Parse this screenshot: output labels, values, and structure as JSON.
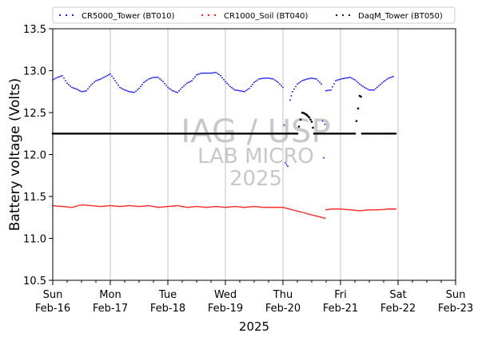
{
  "chart_data": {
    "type": "scatter",
    "title": "",
    "xlabel": "2025",
    "ylabel": "Battery voltage (Volts)",
    "xlim": [
      "2025-02-16",
      "2025-02-23"
    ],
    "ylim": [
      10.5,
      13.5
    ],
    "yticks": [
      "10.5",
      "11.0",
      "11.5",
      "12.0",
      "12.5",
      "13.0",
      "13.5"
    ],
    "xticks": [
      {
        "date": "2025-02-16",
        "weekday": "Sun",
        "day": "Feb-16"
      },
      {
        "date": "2025-02-17",
        "weekday": "Mon",
        "day": "Feb-17"
      },
      {
        "date": "2025-02-18",
        "weekday": "Tue",
        "day": "Feb-18"
      },
      {
        "date": "2025-02-19",
        "weekday": "Wed",
        "day": "Feb-19"
      },
      {
        "date": "2025-02-20",
        "weekday": "Thu",
        "day": "Feb-20"
      },
      {
        "date": "2025-02-21",
        "weekday": "Fri",
        "day": "Feb-21"
      },
      {
        "date": "2025-02-22",
        "weekday": "Sat",
        "day": "Feb-22"
      },
      {
        "date": "2025-02-23",
        "weekday": "Sun",
        "day": "Feb-23"
      }
    ],
    "grid": "vertical",
    "legend": "top-center",
    "watermark": [
      "IAG / USP",
      "LAB MICRO",
      "2025"
    ],
    "series": [
      {
        "name": "CR5000_Tower (BT010)",
        "color": "#0000ff",
        "points": [
          [
            "2025-02-16 00:00",
            12.89
          ],
          [
            "2025-02-16 02:00",
            12.92
          ],
          [
            "2025-02-16 04:00",
            12.94
          ],
          [
            "2025-02-16 06:00",
            12.85
          ],
          [
            "2025-02-16 08:00",
            12.8
          ],
          [
            "2025-02-16 10:00",
            12.78
          ],
          [
            "2025-02-16 12:00",
            12.75
          ],
          [
            "2025-02-16 14:00",
            12.76
          ],
          [
            "2025-02-16 16:00",
            12.83
          ],
          [
            "2025-02-16 18:00",
            12.88
          ],
          [
            "2025-02-16 20:00",
            12.9
          ],
          [
            "2025-02-16 22:00",
            12.93
          ],
          [
            "2025-02-17 00:00",
            12.96
          ],
          [
            "2025-02-17 02:00",
            12.88
          ],
          [
            "2025-02-17 04:00",
            12.8
          ],
          [
            "2025-02-17 06:00",
            12.77
          ],
          [
            "2025-02-17 08:00",
            12.75
          ],
          [
            "2025-02-17 10:00",
            12.74
          ],
          [
            "2025-02-17 12:00",
            12.79
          ],
          [
            "2025-02-17 14:00",
            12.86
          ],
          [
            "2025-02-17 16:00",
            12.9
          ],
          [
            "2025-02-17 18:00",
            12.92
          ],
          [
            "2025-02-17 20:00",
            12.92
          ],
          [
            "2025-02-17 22:00",
            12.87
          ],
          [
            "2025-02-18 00:00",
            12.8
          ],
          [
            "2025-02-18 02:00",
            12.76
          ],
          [
            "2025-02-18 04:00",
            12.74
          ],
          [
            "2025-02-18 06:00",
            12.8
          ],
          [
            "2025-02-18 08:00",
            12.85
          ],
          [
            "2025-02-18 10:00",
            12.88
          ],
          [
            "2025-02-18 12:00",
            12.95
          ],
          [
            "2025-02-18 14:00",
            12.97
          ],
          [
            "2025-02-18 16:00",
            12.97
          ],
          [
            "2025-02-18 18:00",
            12.97
          ],
          [
            "2025-02-18 20:00",
            12.98
          ],
          [
            "2025-02-18 22:00",
            12.94
          ],
          [
            "2025-02-19 00:00",
            12.87
          ],
          [
            "2025-02-19 02:00",
            12.81
          ],
          [
            "2025-02-19 04:00",
            12.77
          ],
          [
            "2025-02-19 06:00",
            12.76
          ],
          [
            "2025-02-19 08:00",
            12.75
          ],
          [
            "2025-02-19 10:00",
            12.79
          ],
          [
            "2025-02-19 12:00",
            12.86
          ],
          [
            "2025-02-19 14:00",
            12.9
          ],
          [
            "2025-02-19 16:00",
            12.91
          ],
          [
            "2025-02-19 18:00",
            12.91
          ],
          [
            "2025-02-19 20:00",
            12.9
          ],
          [
            "2025-02-19 22:00",
            12.86
          ],
          [
            "2025-02-20 00:00",
            12.8
          ],
          [
            "2025-02-20 01:00",
            11.9
          ],
          [
            "2025-02-20 02:00",
            11.86
          ],
          [
            "2025-02-20 03:00",
            12.65
          ],
          [
            "2025-02-20 04:00",
            12.75
          ],
          [
            "2025-02-20 06:00",
            12.84
          ],
          [
            "2025-02-20 08:00",
            12.88
          ],
          [
            "2025-02-20 10:00",
            12.9
          ],
          [
            "2025-02-20 12:00",
            12.91
          ],
          [
            "2025-02-20 14:00",
            12.9
          ],
          [
            "2025-02-20 16:00",
            12.84
          ],
          [
            "2025-02-20 17:00",
            11.96
          ],
          [
            "2025-02-20 18:00",
            12.76
          ],
          [
            "2025-02-20 20:00",
            12.77
          ],
          [
            "2025-02-20 22:00",
            12.88
          ],
          [
            "2025-02-21 00:00",
            12.9
          ],
          [
            "2025-02-21 02:00",
            12.91
          ],
          [
            "2025-02-21 04:00",
            12.92
          ],
          [
            "2025-02-21 06:00",
            12.89
          ],
          [
            "2025-02-21 08:00",
            12.84
          ],
          [
            "2025-02-21 10:00",
            12.8
          ],
          [
            "2025-02-21 12:00",
            12.77
          ],
          [
            "2025-02-21 14:00",
            12.77
          ],
          [
            "2025-02-21 16:00",
            12.82
          ],
          [
            "2025-02-21 18:00",
            12.87
          ],
          [
            "2025-02-21 20:00",
            12.91
          ],
          [
            "2025-02-21 22:00",
            12.93
          ]
        ]
      },
      {
        "name": "CR1000_Soil (BT040)",
        "color": "#ff0000",
        "points": [
          [
            "2025-02-16 00:00",
            11.39
          ],
          [
            "2025-02-16 04:00",
            11.38
          ],
          [
            "2025-02-16 08:00",
            11.37
          ],
          [
            "2025-02-16 12:00",
            11.4
          ],
          [
            "2025-02-16 16:00",
            11.39
          ],
          [
            "2025-02-16 20:00",
            11.38
          ],
          [
            "2025-02-17 00:00",
            11.39
          ],
          [
            "2025-02-17 04:00",
            11.38
          ],
          [
            "2025-02-17 08:00",
            11.39
          ],
          [
            "2025-02-17 12:00",
            11.38
          ],
          [
            "2025-02-17 16:00",
            11.39
          ],
          [
            "2025-02-17 20:00",
            11.37
          ],
          [
            "2025-02-18 00:00",
            11.38
          ],
          [
            "2025-02-18 04:00",
            11.39
          ],
          [
            "2025-02-18 08:00",
            11.37
          ],
          [
            "2025-02-18 12:00",
            11.38
          ],
          [
            "2025-02-18 16:00",
            11.37
          ],
          [
            "2025-02-18 20:00",
            11.38
          ],
          [
            "2025-02-19 00:00",
            11.37
          ],
          [
            "2025-02-19 04:00",
            11.38
          ],
          [
            "2025-02-19 08:00",
            11.37
          ],
          [
            "2025-02-19 12:00",
            11.38
          ],
          [
            "2025-02-19 16:00",
            11.37
          ],
          [
            "2025-02-19 20:00",
            11.37
          ],
          [
            "2025-02-20 00:00",
            11.37
          ],
          [
            "2025-02-20 17:30",
            11.24
          ],
          [
            "2025-02-20 18:00",
            11.34
          ],
          [
            "2025-02-20 20:00",
            11.35
          ],
          [
            "2025-02-21 00:00",
            11.35
          ],
          [
            "2025-02-21 04:00",
            11.34
          ],
          [
            "2025-02-21 08:00",
            11.33
          ],
          [
            "2025-02-21 12:00",
            11.34
          ],
          [
            "2025-02-21 16:00",
            11.34
          ],
          [
            "2025-02-21 20:00",
            11.35
          ],
          [
            "2025-02-21 23:00",
            11.35
          ]
        ]
      },
      {
        "name": "DaqM_Tower (BT050)",
        "color": "#000000",
        "points": [
          [
            "2025-02-16 00:00",
            12.25
          ],
          [
            "2025-02-16 06:00",
            12.25
          ],
          [
            "2025-02-16 12:00",
            12.25
          ],
          [
            "2025-02-16 18:00",
            12.25
          ],
          [
            "2025-02-17 00:00",
            12.25
          ],
          [
            "2025-02-17 06:00",
            12.25
          ],
          [
            "2025-02-17 12:00",
            12.25
          ],
          [
            "2025-02-17 18:00",
            12.25
          ],
          [
            "2025-02-18 00:00",
            12.25
          ],
          [
            "2025-02-18 06:00",
            12.25
          ],
          [
            "2025-02-18 12:00",
            12.25
          ],
          [
            "2025-02-18 18:00",
            12.25
          ],
          [
            "2025-02-19 00:00",
            12.25
          ],
          [
            "2025-02-19 06:00",
            12.25
          ],
          [
            "2025-02-19 12:00",
            12.25
          ],
          [
            "2025-02-19 18:00",
            12.25
          ],
          [
            "2025-02-20 00:00",
            12.25
          ],
          [
            "2025-02-20 06:00",
            12.25
          ],
          [
            "2025-02-20 08:00",
            12.5
          ],
          [
            "2025-02-20 09:00",
            12.49
          ],
          [
            "2025-02-20 10:00",
            12.47
          ],
          [
            "2025-02-20 11:00",
            12.44
          ],
          [
            "2025-02-20 12:00",
            12.39
          ],
          [
            "2025-02-20 13:00",
            12.25
          ],
          [
            "2025-02-20 18:00",
            12.25
          ],
          [
            "2025-02-21 00:00",
            12.25
          ],
          [
            "2025-02-21 06:00",
            12.25
          ],
          [
            "2025-02-21 08:00",
            12.7
          ],
          [
            "2025-02-21 08:30",
            12.69
          ],
          [
            "2025-02-21 09:00",
            12.25
          ],
          [
            "2025-02-21 12:00",
            12.25
          ],
          [
            "2025-02-21 18:00",
            12.25
          ],
          [
            "2025-02-21 23:00",
            12.25
          ]
        ]
      }
    ]
  }
}
